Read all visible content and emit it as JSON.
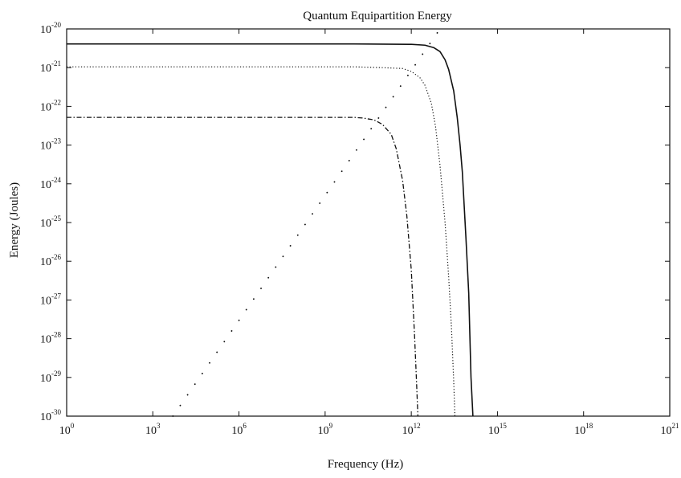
{
  "chart_data": {
    "type": "line",
    "title": "Quantum Equipartition Energy",
    "xlabel": "Frequency (Hz)",
    "ylabel": "Energy (Joules)",
    "x_scale": "log",
    "y_scale": "log",
    "xlim": [
      1,
      1e+21
    ],
    "ylim": [
      1e-30,
      1e-20
    ],
    "x_ticks": [
      {
        "base": "10",
        "exp": "0",
        "value": 1
      },
      {
        "base": "10",
        "exp": "3",
        "value": 1000.0
      },
      {
        "base": "10",
        "exp": "6",
        "value": 1000000.0
      },
      {
        "base": "10",
        "exp": "9",
        "value": 1000000000.0
      },
      {
        "base": "10",
        "exp": "12",
        "value": 1000000000000.0
      },
      {
        "base": "10",
        "exp": "15",
        "value": 1000000000000000.0
      },
      {
        "base": "10",
        "exp": "18",
        "value": 1e+18
      },
      {
        "base": "10",
        "exp": "21",
        "value": 1e+21
      }
    ],
    "y_ticks": [
      {
        "base": "10",
        "exp": "-20",
        "value": 1e-20
      },
      {
        "base": "10",
        "exp": "-21",
        "value": 1e-21
      },
      {
        "base": "10",
        "exp": "-22",
        "value": 1e-22
      },
      {
        "base": "10",
        "exp": "-23",
        "value": 1e-23
      },
      {
        "base": "10",
        "exp": "-24",
        "value": 1e-24
      },
      {
        "base": "10",
        "exp": "-25",
        "value": 1e-25
      },
      {
        "base": "10",
        "exp": "-26",
        "value": 1e-26
      },
      {
        "base": "10",
        "exp": "-27",
        "value": 1e-27
      },
      {
        "base": "10",
        "exp": "-28",
        "value": 1e-28
      },
      {
        "base": "10",
        "exp": "-29",
        "value": 1e-29
      },
      {
        "base": "10",
        "exp": "-30",
        "value": 1e-30
      }
    ],
    "grid": false,
    "legend": "none",
    "series": [
      {
        "style": "solid",
        "color": "#111111",
        "x": [
          1,
          1000000.0,
          10000000000.0,
          1000000000000.0,
          3000000000000.0,
          6000000000000.0,
          10000000000000.0,
          15000000000000.0,
          20000000000000.0,
          30000000000000.0,
          40000000000000.0,
          50000000000000.0,
          60000000000000.0,
          80000000000000.0,
          100000000000000.0,
          120000000000000.0,
          140000000000000.0
        ],
        "y": [
          4.1e-21,
          4.1e-21,
          4.1e-21,
          4e-21,
          3.8e-21,
          3.3e-21,
          2.6e-21,
          1.6e-21,
          9e-22,
          2.5e-22,
          5e-23,
          1e-23,
          2e-24,
          4e-26,
          1.5e-27,
          1e-29,
          1e-30
        ]
      },
      {
        "style": "dotted",
        "color": "#111111",
        "x": [
          1,
          1000000.0,
          10000000000.0,
          100000000000.0,
          500000000000.0,
          1000000000000.0,
          2000000000000.0,
          3000000000000.0,
          5000000000000.0,
          7000000000000.0,
          10000000000000.0,
          15000000000000.0,
          20000000000000.0,
          25000000000000.0,
          30000000000000.0,
          33000000000000.0
        ],
        "y": [
          1.05e-21,
          1.05e-21,
          1.05e-21,
          1e-21,
          9.5e-22,
          8e-22,
          5.5e-22,
          3.5e-22,
          1.2e-22,
          3e-23,
          3e-24,
          1e-25,
          4e-27,
          2e-28,
          8e-30,
          1e-30
        ]
      },
      {
        "style": "dashdot",
        "color": "#111111",
        "x": [
          1,
          1000000.0,
          10000000000.0,
          20000000000.0,
          50000000000.0,
          100000000000.0,
          200000000000.0,
          300000000000.0,
          500000000000.0,
          700000000000.0,
          1000000000000.0,
          1300000000000.0,
          1500000000000.0,
          1700000000000.0
        ],
        "y": [
          5.2e-23,
          5.2e-23,
          5.2e-23,
          5e-23,
          4.5e-23,
          3.4e-23,
          1.9e-23,
          8e-24,
          1.2e-24,
          1.5e-25,
          6e-27,
          1.2e-28,
          1e-29,
          1e-30
        ]
      },
      {
        "style": "sparse-dotted",
        "color": "#111111",
        "x": [
          5000.0,
          10000000000000.0
        ],
        "y": [
          1e-30,
          1e-20
        ]
      }
    ]
  }
}
